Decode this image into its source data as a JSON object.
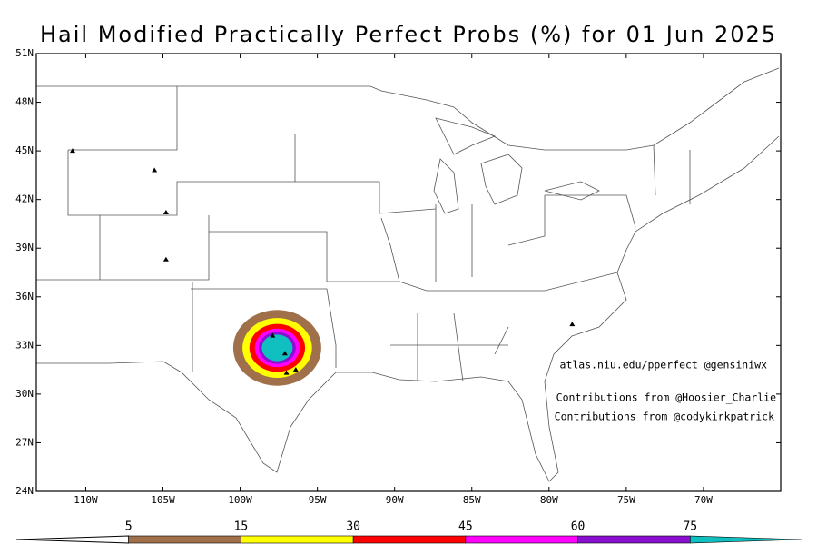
{
  "map": {
    "type": "map",
    "title": "Hail Modified Practically Perfect Probs (%) for 01 Jun 2025",
    "xlim": [
      -113.2,
      -65
    ],
    "ylim": [
      24,
      51
    ],
    "xticks": [
      {
        "value": -110,
        "label": "110W"
      },
      {
        "value": -105,
        "label": "105W"
      },
      {
        "value": -100,
        "label": "100W"
      },
      {
        "value": -95,
        "label": "95W"
      },
      {
        "value": -90,
        "label": "90W"
      },
      {
        "value": -85,
        "label": "85W"
      },
      {
        "value": -80,
        "label": "80W"
      },
      {
        "value": -75,
        "label": "75W"
      },
      {
        "value": -70,
        "label": "70W"
      }
    ],
    "yticks": [
      {
        "value": 24,
        "label": "24N"
      },
      {
        "value": 27,
        "label": "27N"
      },
      {
        "value": 30,
        "label": "30N"
      },
      {
        "value": 33,
        "label": "33N"
      },
      {
        "value": 36,
        "label": "36N"
      },
      {
        "value": 39,
        "label": "39N"
      },
      {
        "value": 42,
        "label": "42N"
      },
      {
        "value": 45,
        "label": "45N"
      },
      {
        "value": 48,
        "label": "48N"
      },
      {
        "value": 51,
        "label": "51N"
      }
    ],
    "annotations": [
      "atlas.niu.edu/pperfect @gensiniwx",
      "Contributions from @Hoosier_Charlie",
      "Contributions from @codykirkpatrick"
    ],
    "contour_center": {
      "lon": -97.6,
      "lat": 32.85
    },
    "levels": [
      {
        "value": 5,
        "color": "#a0704a",
        "radius": 2.85
      },
      {
        "value": 15,
        "color": "#ffff00",
        "radius": 2.25
      },
      {
        "value": 30,
        "color": "#ff0000",
        "radius": 1.8
      },
      {
        "value": 45,
        "color": "#ff00ff",
        "radius": 1.45
      },
      {
        "value": 60,
        "color": "#8a10d0",
        "radius": 1.2
      },
      {
        "value": 75,
        "color": "#10c0c0",
        "radius": 1.0
      }
    ],
    "reports": [
      {
        "lon": -110.85,
        "lat": 45.0
      },
      {
        "lon": -105.55,
        "lat": 43.8
      },
      {
        "lon": -104.8,
        "lat": 41.2
      },
      {
        "lon": -104.8,
        "lat": 38.3
      },
      {
        "lon": -78.5,
        "lat": 34.3
      },
      {
        "lon": -97.9,
        "lat": 33.6
      },
      {
        "lon": -97.1,
        "lat": 32.5
      },
      {
        "lon": -97.0,
        "lat": 31.3
      },
      {
        "lon": -96.4,
        "lat": 31.5
      }
    ]
  }
}
